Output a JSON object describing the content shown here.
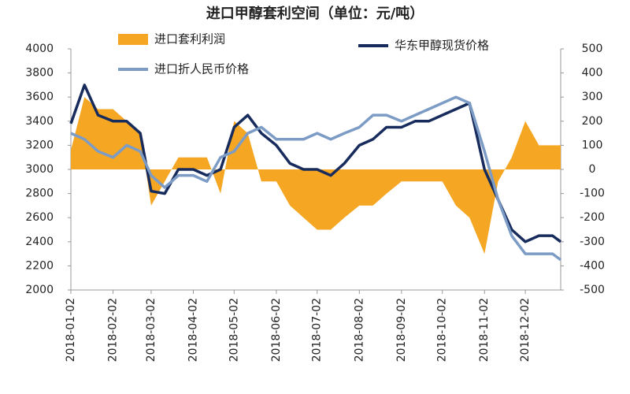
{
  "chart_data": {
    "type": "line",
    "title": "进口甲醇套利空间（单位：元/吨）",
    "x": [
      "2018-01-02",
      "2018-01-12",
      "2018-01-22",
      "2018-02-02",
      "2018-02-12",
      "2018-02-22",
      "2018-03-02",
      "2018-03-12",
      "2018-03-22",
      "2018-04-02",
      "2018-04-12",
      "2018-04-22",
      "2018-05-02",
      "2018-05-12",
      "2018-05-22",
      "2018-06-02",
      "2018-06-12",
      "2018-06-22",
      "2018-07-02",
      "2018-07-12",
      "2018-07-22",
      "2018-08-02",
      "2018-08-12",
      "2018-08-22",
      "2018-09-02",
      "2018-09-12",
      "2018-09-22",
      "2018-10-02",
      "2018-10-12",
      "2018-10-22",
      "2018-11-02",
      "2018-11-12",
      "2018-11-22",
      "2018-12-02",
      "2018-12-12",
      "2018-12-22",
      "2018-12-28"
    ],
    "xlim": [
      "2018-01-02",
      "2018-12-28"
    ],
    "xticks": [
      "2018-01-02",
      "2018-02-02",
      "2018-03-02",
      "2018-04-02",
      "2018-05-02",
      "2018-06-02",
      "2018-07-02",
      "2018-08-02",
      "2018-09-02",
      "2018-10-02",
      "2018-11-02",
      "2018-12-02"
    ],
    "ylim": [
      2000,
      4000
    ],
    "yticks": [
      2000,
      2200,
      2400,
      2600,
      2800,
      3000,
      3200,
      3400,
      3600,
      3800,
      4000
    ],
    "y2lim": [
      -500,
      500
    ],
    "y2ticks": [
      -500,
      -400,
      -300,
      -200,
      -100,
      0,
      100,
      200,
      300,
      400,
      500
    ],
    "series": [
      {
        "name": "进口套利利润",
        "color": "#f5a623",
        "kind": "area",
        "axis": "y2",
        "values": [
          80,
          300,
          250,
          250,
          200,
          150,
          -150,
          -50,
          50,
          50,
          50,
          -100,
          200,
          150,
          -50,
          -50,
          -150,
          -200,
          -250,
          -250,
          -200,
          -150,
          -150,
          -100,
          -50,
          -50,
          -50,
          -50,
          -150,
          -200,
          -350,
          -50,
          50,
          200,
          100,
          100,
          100
        ]
      },
      {
        "name": "华东甲醇现货价格",
        "color": "#172c5c",
        "kind": "line",
        "values": [
          3380,
          3700,
          3450,
          3400,
          3400,
          3300,
          2820,
          2800,
          3000,
          3000,
          2950,
          3000,
          3350,
          3450,
          3300,
          3200,
          3050,
          3000,
          3000,
          2950,
          3050,
          3200,
          3250,
          3350,
          3350,
          3400,
          3400,
          3450,
          3500,
          3550,
          3000,
          2750,
          2500,
          2400,
          2450,
          2450,
          2400
        ]
      },
      {
        "name": "进口折人民币价格",
        "color": "#7c9cc6",
        "kind": "line",
        "values": [
          3300,
          3250,
          3150,
          3100,
          3200,
          3150,
          2950,
          2850,
          2950,
          2950,
          2900,
          3100,
          3150,
          3300,
          3350,
          3250,
          3250,
          3250,
          3300,
          3250,
          3300,
          3350,
          3450,
          3450,
          3400,
          3450,
          3500,
          3550,
          3600,
          3550,
          3150,
          2750,
          2450,
          2300,
          2300,
          2300,
          2250
        ]
      }
    ]
  }
}
